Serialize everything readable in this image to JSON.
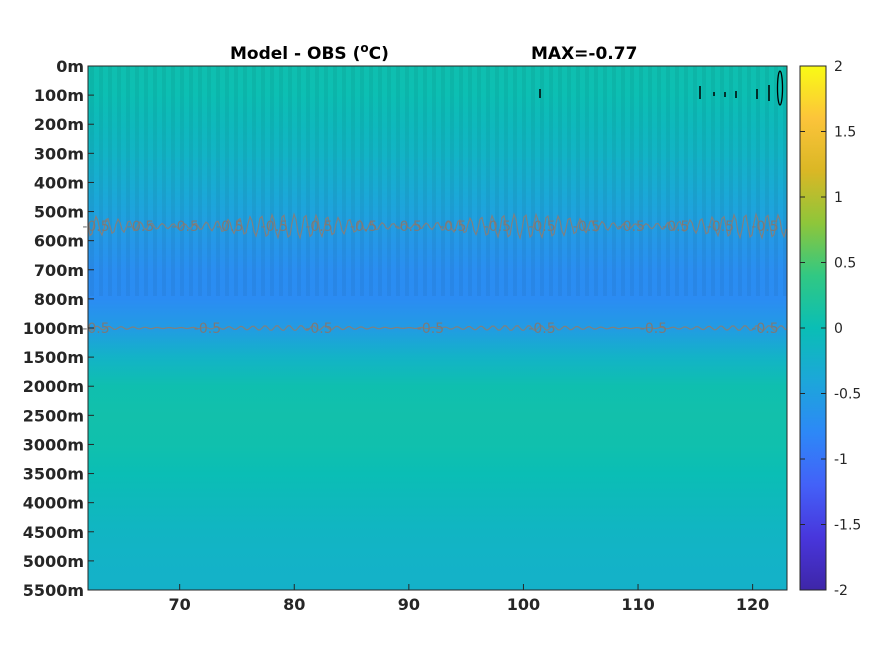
{
  "chart_data": {
    "type": "heatmap",
    "title": "Model - OBS (",
    "title_unit": "o",
    "title_suffix": "C)",
    "max_label": "MAX=-0.77",
    "xlim": [
      62,
      123
    ],
    "x_ticks": [
      70,
      80,
      90,
      100,
      110,
      120
    ],
    "y_ticks": [
      "0m",
      "100m",
      "200m",
      "300m",
      "400m",
      "500m",
      "600m",
      "700m",
      "800m",
      "1000m",
      "1500m",
      "2000m",
      "2500m",
      "3000m",
      "3500m",
      "4000m",
      "4500m",
      "5000m",
      "5500m"
    ],
    "colorbar": {
      "min": -2,
      "max": 2,
      "ticks": [
        "2",
        "1.5",
        "1",
        "0.5",
        "0",
        "-0.5",
        "-1",
        "-1.5",
        "-2"
      ],
      "colormap": [
        "#3e26a8",
        "#4836dc",
        "#4361f8",
        "#2d88f7",
        "#1ca7d9",
        "#0abeb5",
        "#31c883",
        "#8ec63a",
        "#dab725",
        "#fcc43a",
        "#f9fb15"
      ]
    },
    "depth_profile": [
      {
        "depth": "0m",
        "value": 0.05
      },
      {
        "depth": "100m",
        "value": 0.02
      },
      {
        "depth": "200m",
        "value": -0.08
      },
      {
        "depth": "300m",
        "value": -0.18
      },
      {
        "depth": "400m",
        "value": -0.32
      },
      {
        "depth": "500m",
        "value": -0.45
      },
      {
        "depth": "600m",
        "value": -0.6
      },
      {
        "depth": "700m",
        "value": -0.72
      },
      {
        "depth": "800m",
        "value": -0.75
      },
      {
        "depth": "1000m",
        "value": -0.55
      },
      {
        "depth": "1500m",
        "value": -0.2
      },
      {
        "depth": "2000m",
        "value": 0.05
      },
      {
        "depth": "2500m",
        "value": 0.08
      },
      {
        "depth": "3000m",
        "value": 0.06
      },
      {
        "depth": "3500m",
        "value": 0.0
      },
      {
        "depth": "4000m",
        "value": -0.08
      },
      {
        "depth": "4500m",
        "value": -0.15
      },
      {
        "depth": "5000m",
        "value": -0.2
      },
      {
        "depth": "5500m",
        "value": -0.22
      }
    ],
    "contours": [
      {
        "level": -0.5,
        "label": "-0.5",
        "depth_index": 5.5
      },
      {
        "level": -0.5,
        "label": "-0.5",
        "depth_index": 9.0
      }
    ],
    "contour_color": "#808080"
  }
}
